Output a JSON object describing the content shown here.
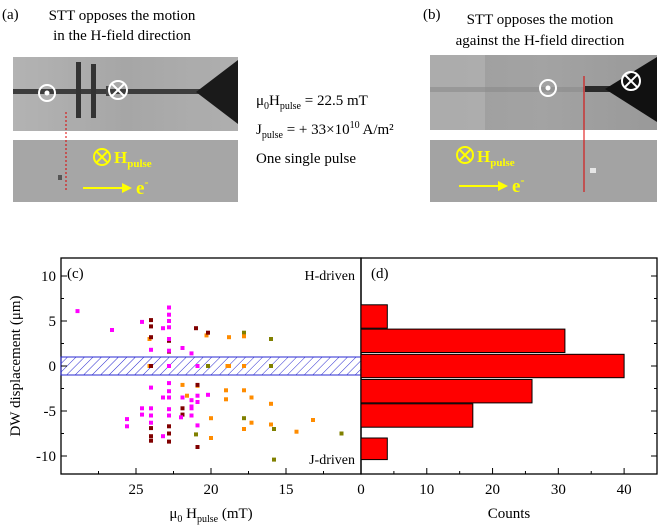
{
  "panel_a": {
    "label": "(a)",
    "title_line1": "STT opposes the motion",
    "title_line2": "in the H-field direction",
    "field_symbol": "H",
    "field_subscript": "pulse",
    "electron": "e",
    "electron_sup": "-"
  },
  "panel_b": {
    "label": "(b)",
    "title_line1": "STT opposes the motion",
    "title_line2": "against the H-field direction",
    "field_symbol": "H",
    "field_subscript": "pulse",
    "electron": "e",
    "electron_sup": "-"
  },
  "params": {
    "mu0H_prefix": "μ",
    "mu0H_sub0": "0",
    "mu0H_H": "H",
    "mu0H_sub": "pulse",
    "mu0H_value": " = 22.5 mT",
    "J_symbol": "J",
    "J_sub": "pulse",
    "J_value": " = + 33×10",
    "J_exp": "10",
    "J_unit": " A/m²",
    "pulse_note": "One single pulse"
  },
  "chart_data": [
    {
      "type": "scatter",
      "panel_label": "(c)",
      "xlabel_mu": "μ",
      "xlabel_sub0": "0",
      "xlabel_H": " H",
      "xlabel_sub": "pulse",
      "xlabel_unit": "  (mT)",
      "ylabel": "DW displacement  (μm)",
      "x_reversed": true,
      "xlim": [
        10,
        30
      ],
      "ylim": [
        -12,
        12
      ],
      "x_ticks": [
        10,
        15,
        20,
        25
      ],
      "x_tick_labels": [
        "",
        "15",
        "20",
        "25"
      ],
      "y_ticks": [
        10,
        5,
        0,
        -5,
        -10
      ],
      "y_tick_labels": [
        "10",
        "5",
        "0",
        "-5",
        "-10"
      ],
      "annotation_top": "H-driven",
      "annotation_bottom": "J-driven",
      "hatched_band": [
        -1,
        1
      ],
      "series": [
        {
          "color": "#808000",
          "points": [
            [
              11.3,
              -7.5
            ],
            [
              15.8,
              -10.4
            ],
            [
              16.0,
              3.0
            ],
            [
              16.0,
              0
            ],
            [
              17.8,
              3.7
            ],
            [
              17.8,
              -5.8
            ],
            [
              15.8,
              -7.0
            ],
            [
              20.2,
              0
            ],
            [
              21.0,
              -7.6
            ]
          ]
        },
        {
          "color": "#ff8c00",
          "points": [
            [
              13.2,
              -6.0
            ],
            [
              14.3,
              -7.3
            ],
            [
              16.0,
              -4.2
            ],
            [
              16.0,
              -6.5
            ],
            [
              17.3,
              -3.5
            ],
            [
              17.3,
              -6.3
            ],
            [
              17.8,
              -7.0
            ],
            [
              17.8,
              -2.7
            ],
            [
              17.8,
              0
            ],
            [
              19.0,
              -2.7
            ],
            [
              19.0,
              -3.7
            ],
            [
              20.0,
              -5.8
            ],
            [
              20.0,
              -8.0
            ],
            [
              18.9,
              0
            ],
            [
              20.9,
              -2.2
            ],
            [
              20.3,
              3.4
            ],
            [
              21.9,
              -2.1
            ],
            [
              21.6,
              -3.3
            ],
            [
              24.1,
              3.0
            ],
            [
              24.1,
              0
            ],
            [
              17.8,
              3.3
            ],
            [
              18.8,
              3.2
            ],
            [
              18.8,
              0
            ]
          ]
        },
        {
          "color": "#800000",
          "points": [
            [
              20.2,
              3.7
            ],
            [
              21.0,
              4.2
            ],
            [
              20.9,
              -2.1
            ],
            [
              21.9,
              -4.7
            ],
            [
              21.9,
              -5.4
            ],
            [
              22.8,
              2.8
            ],
            [
              22.8,
              -6.7
            ],
            [
              22.8,
              -7.5
            ],
            [
              24.0,
              5.1
            ],
            [
              24.0,
              3.2
            ],
            [
              24.0,
              0
            ],
            [
              24.0,
              -6.9
            ],
            [
              22.8,
              1.6
            ],
            [
              20.9,
              -9.0
            ],
            [
              24.0,
              4.4
            ],
            [
              22.8,
              -8.4
            ],
            [
              24.0,
              -7.8
            ],
            [
              24.0,
              -8.3
            ]
          ]
        },
        {
          "color": "#ff00ff",
          "points": [
            [
              20.9,
              -6.6
            ],
            [
              21.9,
              2.0
            ],
            [
              21.9,
              -3.5
            ],
            [
              22.0,
              -5.7
            ],
            [
              21.3,
              1.4
            ],
            [
              21.3,
              -3.8
            ],
            [
              21.3,
              -4.5
            ],
            [
              21.3,
              -5.5
            ],
            [
              22.8,
              6.5
            ],
            [
              22.8,
              5.7
            ],
            [
              22.8,
              5.0
            ],
            [
              22.8,
              4.3
            ],
            [
              22.8,
              3.0
            ],
            [
              22.8,
              1.7
            ],
            [
              22.8,
              0
            ],
            [
              22.8,
              -1.9
            ],
            [
              22.8,
              -2.8
            ],
            [
              22.8,
              -3.5
            ],
            [
              22.8,
              -4.8
            ],
            [
              22.8,
              -5.5
            ],
            [
              23.2,
              4.2
            ],
            [
              23.2,
              -3.5
            ],
            [
              24.0,
              1.8
            ],
            [
              24.0,
              -2.4
            ],
            [
              24.0,
              -4.7
            ],
            [
              24.0,
              -5.5
            ],
            [
              24.0,
              -6.3
            ],
            [
              24.6,
              4.9
            ],
            [
              24.6,
              -4.7
            ],
            [
              24.6,
              -5.4
            ],
            [
              25.6,
              -5.9
            ],
            [
              25.6,
              -6.7
            ],
            [
              26.6,
              4.0
            ],
            [
              28.9,
              6.1
            ],
            [
              20.2,
              -3.2
            ],
            [
              20.9,
              -4.0
            ],
            [
              20.9,
              0
            ],
            [
              20.9,
              -3.3
            ],
            [
              21.3,
              -4.7
            ],
            [
              23.2,
              -7.8
            ]
          ]
        }
      ]
    },
    {
      "type": "bar",
      "orientation": "horizontal",
      "panel_label": "(d)",
      "xlabel": "Counts",
      "xlim": [
        0,
        45
      ],
      "ylim": [
        -12,
        12
      ],
      "x_ticks": [
        0,
        10,
        20,
        30,
        40
      ],
      "x_tick_labels": [
        "0",
        "10",
        "20",
        "30",
        "40"
      ],
      "bar_color": "#ff0000",
      "bars": [
        {
          "y_center": 5.5,
          "height": 2.6,
          "value": 4
        },
        {
          "y_center": 2.8,
          "height": 2.6,
          "value": 31
        },
        {
          "y_center": 0.0,
          "height": 2.6,
          "value": 40
        },
        {
          "y_center": -2.8,
          "height": 2.6,
          "value": 26
        },
        {
          "y_center": -5.5,
          "height": 2.6,
          "value": 17
        },
        {
          "y_center": -9.2,
          "height": 2.4,
          "value": 4
        }
      ]
    }
  ]
}
